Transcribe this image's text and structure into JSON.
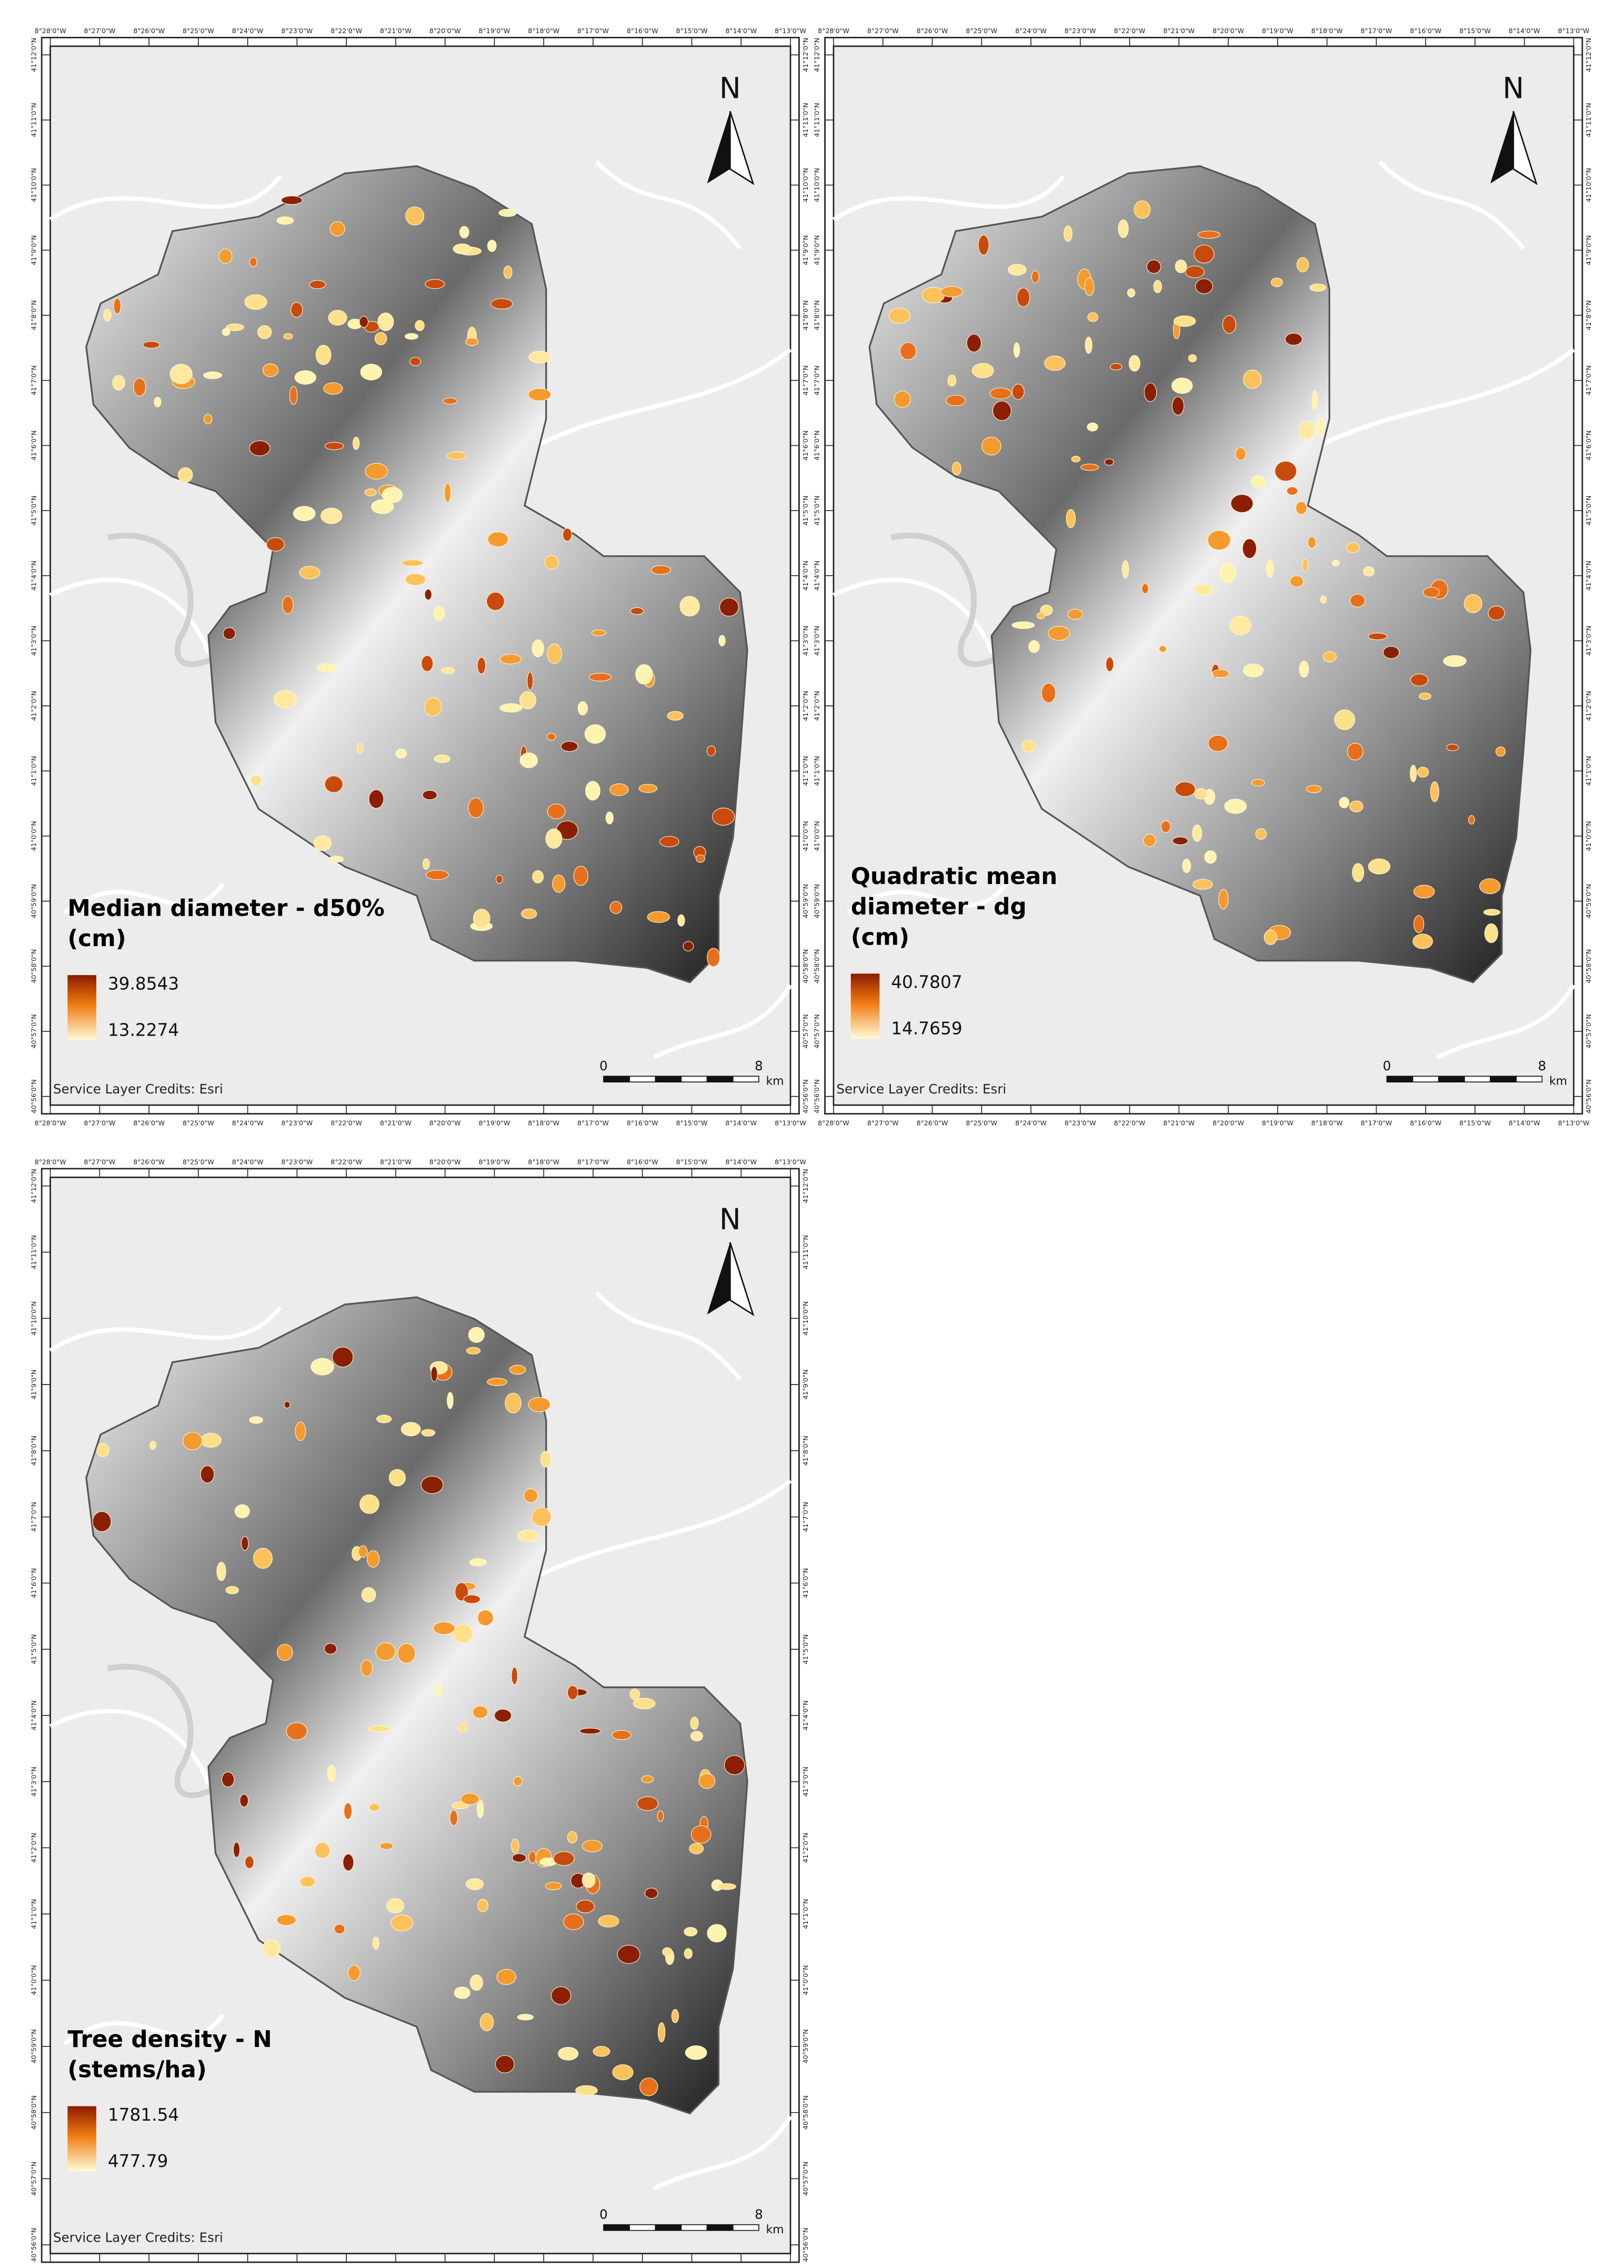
{
  "lon_labels": [
    "8°28'0\"W",
    "8°27'0\"W",
    "8°26'0\"W",
    "8°25'0\"W",
    "8°24'0\"W",
    "8°23'0\"W",
    "8°22'0\"W",
    "8°21'0\"W",
    "8°20'0\"W",
    "8°19'0\"W",
    "8°18'0\"W",
    "8°17'0\"W",
    "8°16'0\"W",
    "8°15'0\"W",
    "8°14'0\"W",
    "8°13'0\"W"
  ],
  "lat_labels": [
    "41°12'0\"N",
    "41°11'0\"N",
    "41°10'0\"N",
    "41°9'0\"N",
    "41°8'0\"N",
    "41°7'0\"N",
    "41°6'0\"N",
    "41°5'0\"N",
    "41°4'0\"N",
    "41°3'0\"N",
    "41°2'0\"N",
    "41°1'0\"N",
    "41°0'0\"N",
    "40°59'0\"N",
    "40°58'0\"N",
    "40°57'0\"N",
    "40°56'0\"N"
  ],
  "north": "N",
  "scale_bar": {
    "start": 0,
    "end": 8,
    "unit": "km"
  },
  "credits": "Service Layer Credits: Esri",
  "panels": [
    {
      "title_lines": [
        "Median diameter - d50%",
        "(cm)"
      ],
      "legend": {
        "max": 39.8543,
        "min": 13.2274
      }
    },
    {
      "title_lines": [
        "Quadratic mean",
        "diameter - dg",
        "(cm)"
      ],
      "legend": {
        "max": 40.7807,
        "min": 14.7659
      }
    },
    {
      "title_lines": [
        "Tree density - N",
        "(stems/ha)"
      ],
      "legend": {
        "max": 1781.54,
        "min": 477.79
      }
    }
  ]
}
